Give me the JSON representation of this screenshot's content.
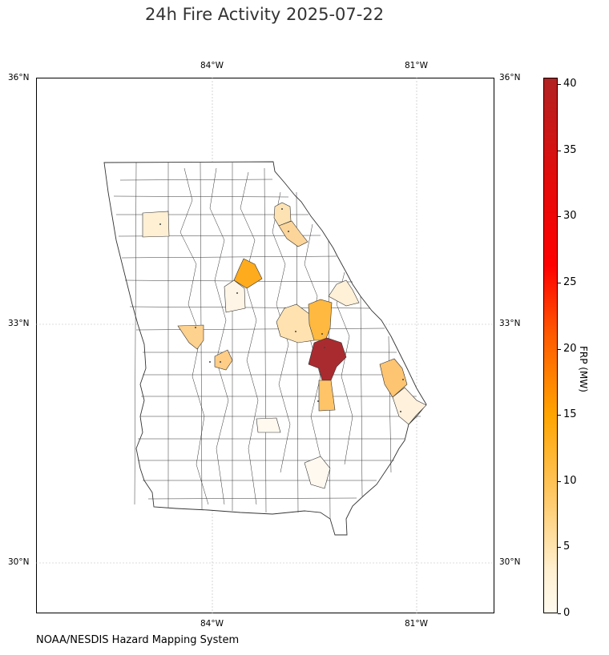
{
  "title": "24h Fire Activity 2025-07-22",
  "source": "NOAA/NESDIS Hazard Mapping System",
  "map": {
    "region": "Georgia counties",
    "lon_ticks": [
      "84°W",
      "81°W"
    ],
    "lat_ticks": [
      "36°N",
      "33°N",
      "30°N"
    ],
    "gridlines": true
  },
  "colorbar": {
    "label": "FRP (MW)",
    "ticks": [
      "0",
      "5",
      "10",
      "15",
      "20",
      "25",
      "30",
      "35",
      "40"
    ],
    "min": 0,
    "max": 40.5,
    "colors": [
      "#fffaf0",
      "#ffc864",
      "#ffa500",
      "#ff0000",
      "#b22222"
    ]
  }
}
